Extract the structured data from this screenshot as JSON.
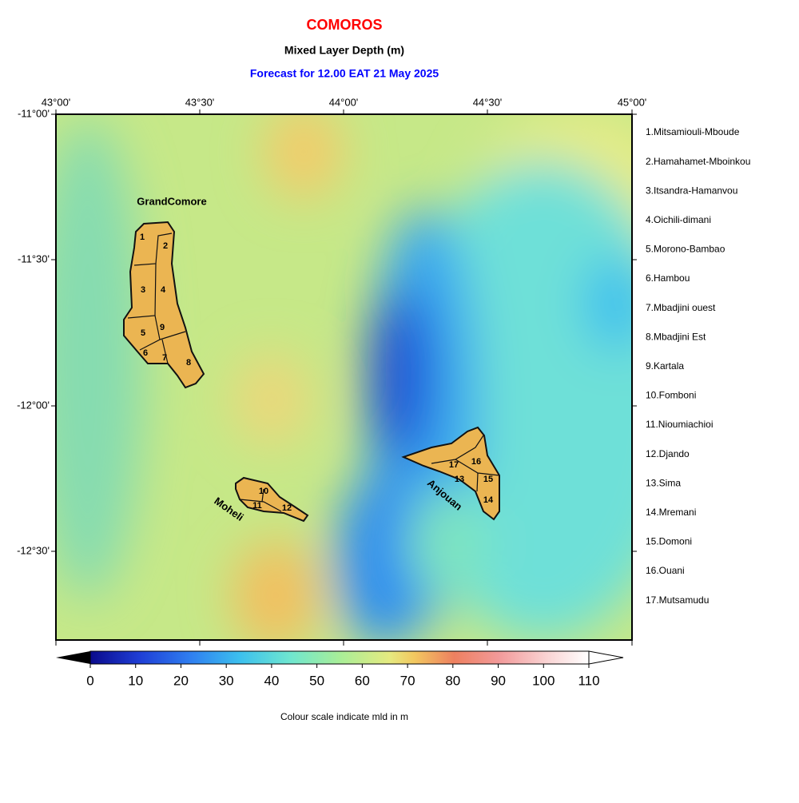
{
  "header": {
    "title": "COMOROS",
    "subtitle": "Mixed Layer Depth (m)",
    "forecast": "Forecast for  12.00 EAT 21 May 2025"
  },
  "map": {
    "lon_labels": [
      "43°00'",
      "43°30'",
      "44°00'",
      "44°30'",
      "45°00'"
    ],
    "lat_labels": [
      "-11°00'",
      "-11°30'",
      "-12°00'",
      "-12°30'"
    ],
    "island_labels": [
      "GrandComore",
      "Moheli",
      "Anjouan"
    ],
    "region_numbers": [
      "1",
      "2",
      "3",
      "4",
      "5",
      "6",
      "7",
      "8",
      "9",
      "10",
      "11",
      "12",
      "13",
      "14",
      "15",
      "16",
      "17"
    ]
  },
  "legend": [
    "1.Mitsamiouli-Mboude",
    "2.Hamahamet-Mboinkou",
    "3.Itsandra-Hamanvou",
    "4.Oichili-dimani",
    "5.Morono-Bambao",
    "6.Hambou",
    "7.Mbadjini ouest",
    "8.Mbadjini Est",
    "9.Kartala",
    "10.Fomboni",
    "11.Nioumiachioi",
    "12.Djando",
    "13.Sima",
    "14.Mremani",
    "15.Domoni",
    "16.Ouani",
    "17.Mutsamudu"
  ],
  "colorbar": {
    "range": [
      0,
      110
    ],
    "ticks": [
      0,
      10,
      20,
      30,
      40,
      50,
      60,
      70,
      80,
      90,
      100,
      110
    ],
    "caption": "Colour scale indicate mld in m"
  }
}
